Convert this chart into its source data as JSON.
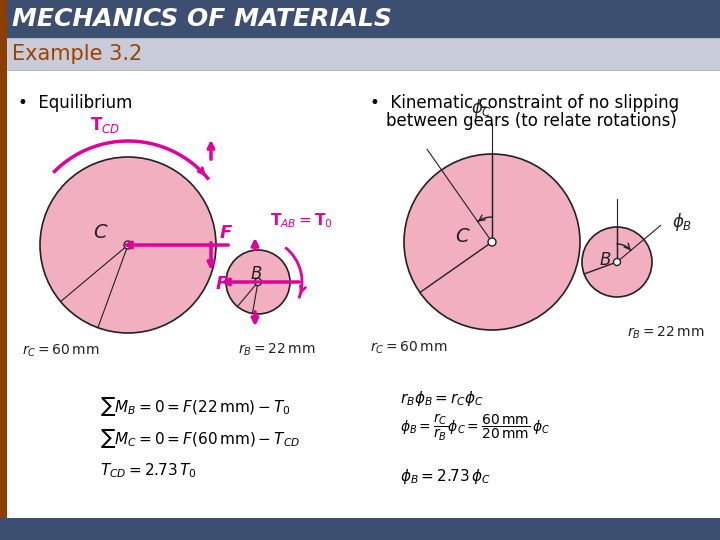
{
  "title": "MECHANICS OF MATERIALS",
  "subtitle": "Example 3.2",
  "title_bg": "#3c4f70",
  "subtitle_bg": "#c8ccd8",
  "title_color": "#ffffff",
  "subtitle_color": "#a04000",
  "bottom_bar_color": "#3c4f70",
  "left_bar_color": "#8b4000",
  "bullet1": "Equilibrium",
  "bullet2_line1": "Kinematic constraint of no slipping",
  "bullet2_line2": "between gears (to relate rotations)",
  "gear_pink": "#f2afc0",
  "gear_outline": "#333333",
  "magenta": "#e0009a",
  "dark_outline": "#222222",
  "gray_outline": "#555555",
  "background": "#ffffff"
}
